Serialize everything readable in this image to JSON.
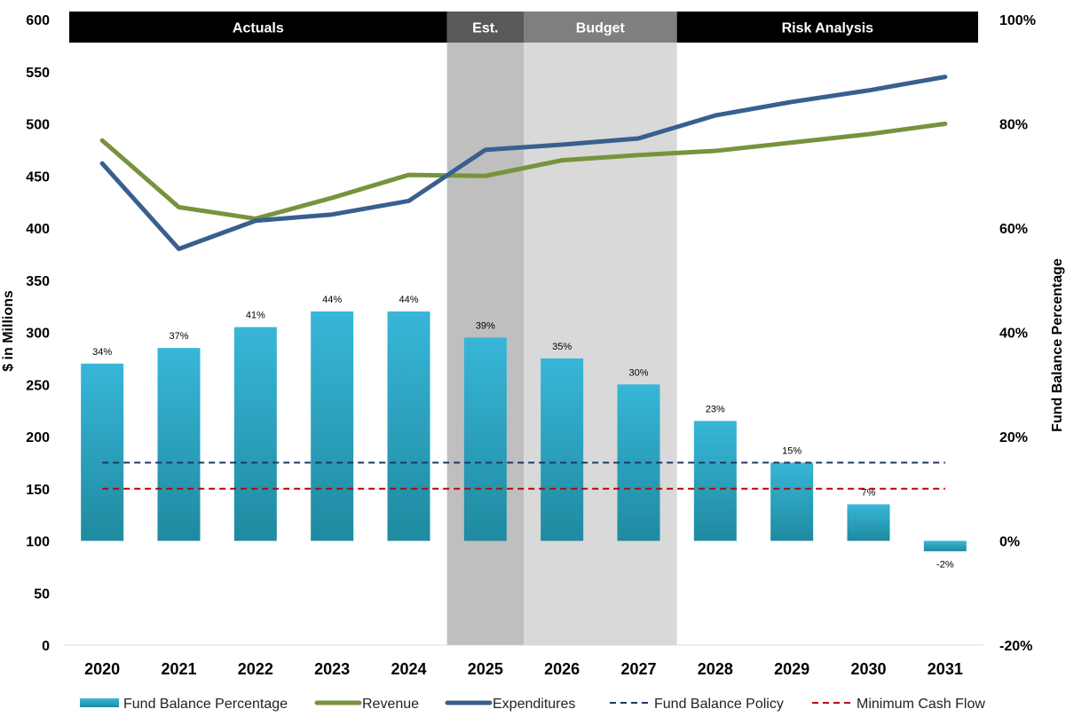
{
  "chart_data": {
    "type": "bar+line",
    "categories": [
      "2020",
      "2021",
      "2022",
      "2023",
      "2024",
      "2025",
      "2026",
      "2027",
      "2028",
      "2029",
      "2030",
      "2031"
    ],
    "y_left": {
      "label": "$ in Millions",
      "min": 0,
      "max": 600,
      "step": 50
    },
    "y_right": {
      "label": "Fund Balance Percentage",
      "min": -20,
      "max": 100,
      "step": 20,
      "suffix": "%"
    },
    "bar_series": {
      "name": "Fund Balance Percentage",
      "axis": "right",
      "values": [
        34,
        37,
        41,
        44,
        44,
        39,
        35,
        30,
        23,
        15,
        7,
        -2
      ],
      "labels": [
        "34%",
        "37%",
        "41%",
        "44%",
        "44%",
        "39%",
        "35%",
        "30%",
        "23%",
        "15%",
        "7%",
        "-2%"
      ],
      "color_top": "#38b6d8",
      "color_bottom": "#1f8aa0"
    },
    "line_series": [
      {
        "name": "Revenue",
        "axis": "left",
        "color": "#77933c",
        "values": [
          484,
          420,
          409,
          429,
          451,
          450,
          465,
          470,
          474,
          482,
          490,
          500
        ]
      },
      {
        "name": "Expenditures",
        "axis": "left",
        "color": "#38608f",
        "values": [
          462,
          380,
          407,
          413,
          426,
          475,
          480,
          486,
          508,
          521,
          532,
          545
        ]
      }
    ],
    "reference_lines": [
      {
        "name": "Fund Balance Policy",
        "axis": "right",
        "value": 15,
        "color": "#1f3864",
        "style": "dashed"
      },
      {
        "name": "Minimum Cash Flow",
        "axis": "right",
        "value": 10,
        "color": "#c00000",
        "style": "dashed"
      }
    ],
    "period_bands": [
      {
        "label": "Actuals",
        "from": "2020",
        "to": "2024",
        "header_color": "#000000",
        "fill": ""
      },
      {
        "label": "Est.",
        "from": "2025",
        "to": "2025",
        "header_color": "#595959",
        "fill": "#bfbfbf"
      },
      {
        "label": "Budget",
        "from": "2026",
        "to": "2027",
        "header_color": "#7f7f7f",
        "fill": "#d9d9d9"
      },
      {
        "label": "Risk Analysis",
        "from": "2028",
        "to": "2031",
        "header_color": "#000000",
        "fill": ""
      }
    ],
    "legend": [
      {
        "name": "Fund Balance Percentage",
        "kind": "bar"
      },
      {
        "name": "Revenue",
        "kind": "line"
      },
      {
        "name": "Expenditures",
        "kind": "line"
      },
      {
        "name": "Fund Balance Policy",
        "kind": "dash"
      },
      {
        "name": "Minimum Cash Flow",
        "kind": "dash"
      }
    ],
    "legend_position": "bottom"
  }
}
